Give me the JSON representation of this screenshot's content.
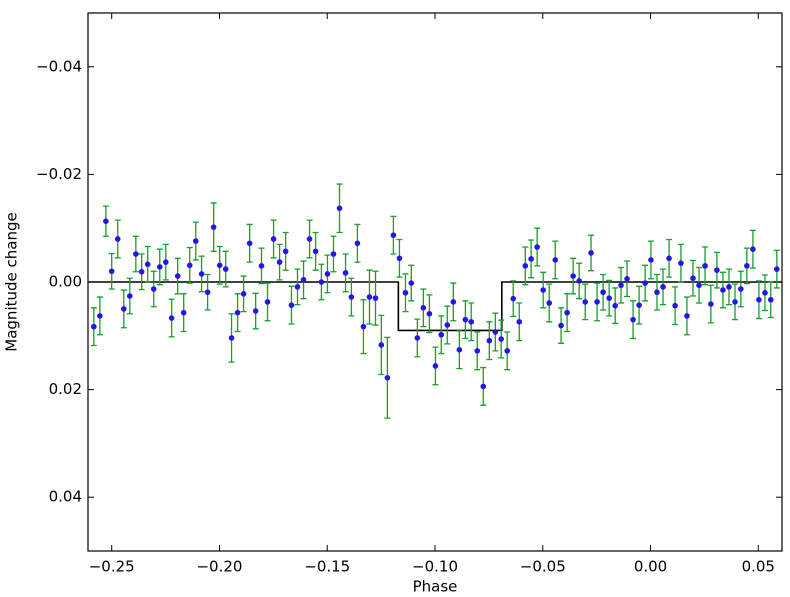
{
  "chart_data": {
    "type": "errorbar",
    "xlabel": "Phase",
    "ylabel": "Magnitude change",
    "xlim": [
      -0.261,
      0.061
    ],
    "ylim": [
      -0.05,
      0.05
    ],
    "y_inverted": true,
    "xticks": [
      {
        "value": -0.25,
        "label": "−0.25"
      },
      {
        "value": -0.2,
        "label": "−0.20"
      },
      {
        "value": -0.15,
        "label": "−0.15"
      },
      {
        "value": -0.1,
        "label": "−0.10"
      },
      {
        "value": -0.05,
        "label": "−0.05"
      },
      {
        "value": 0,
        "label": "0.00"
      },
      0.05
    ],
    "yticks": [
      {
        "value": -0.04,
        "label": "−0.04"
      },
      {
        "value": -0.02,
        "label": "−0.02"
      },
      {
        "value": 0,
        "label": "0.00"
      },
      0.02,
      0.04
    ],
    "points": {
      "color": "#2a12e8",
      "error_color": "#14a02c",
      "x": [
        -0.2583,
        -0.2555,
        -0.2527,
        -0.25,
        -0.2472,
        -0.2444,
        -0.2416,
        -0.2388,
        -0.2361,
        -0.2333,
        -0.2305,
        -0.2277,
        -0.2249,
        -0.2222,
        -0.2194,
        -0.2166,
        -0.2138,
        -0.211,
        -0.2083,
        -0.2055,
        -0.2027,
        -0.1999,
        -0.1971,
        -0.1944,
        -0.1916,
        -0.1888,
        -0.186,
        -0.1832,
        -0.1805,
        -0.1777,
        -0.1749,
        -0.1721,
        -0.1693,
        -0.1666,
        -0.1638,
        -0.161,
        -0.1582,
        -0.1554,
        -0.1527,
        -0.1499,
        -0.1471,
        -0.1443,
        -0.1415,
        -0.1388,
        -0.136,
        -0.1332,
        -0.1304,
        -0.1276,
        -0.1249,
        -0.1221,
        -0.1193,
        -0.1165,
        -0.1137,
        -0.111,
        -0.1082,
        -0.1054,
        -0.1026,
        -0.0998,
        -0.0971,
        -0.0943,
        -0.0915,
        -0.0887,
        -0.0859,
        -0.0832,
        -0.0804,
        -0.0776,
        -0.0748,
        -0.072,
        -0.0693,
        -0.0665,
        -0.0637,
        -0.0609,
        -0.0581,
        -0.0554,
        -0.0526,
        -0.0498,
        -0.047,
        -0.0442,
        -0.0415,
        -0.0387,
        -0.0359,
        -0.0331,
        -0.0303,
        -0.0276,
        -0.0248,
        -0.022,
        -0.0192,
        -0.0164,
        -0.0137,
        -0.0109,
        -0.0081,
        -0.0053,
        -0.0025,
        0.0002,
        0.003,
        0.0058,
        0.0086,
        0.0114,
        0.0141,
        0.0169,
        0.0197,
        0.0225,
        0.0253,
        0.028,
        0.0308,
        0.0336,
        0.0364,
        0.0392,
        0.0419,
        0.0447,
        0.0475,
        0.0503,
        0.0531,
        0.0558,
        0.0586
      ],
      "values": [
        0.0083,
        0.0063,
        -0.0113,
        -0.002,
        -0.008,
        0.005,
        0.0026,
        -0.0052,
        -0.0019,
        -0.0033,
        0.0013,
        -0.0028,
        -0.0037,
        0.0067,
        -0.0011,
        0.0057,
        -0.0031,
        -0.0076,
        -0.0015,
        0.0019,
        -0.0102,
        -0.0031,
        -0.0024,
        0.0104,
        0.0057,
        0.0022,
        -0.0072,
        0.0054,
        -0.003,
        0.0037,
        -0.008,
        -0.0037,
        -0.0057,
        0.0043,
        0.0009,
        -0.0004,
        -0.008,
        -0.0057,
        0.0,
        -0.0015,
        -0.0052,
        -0.0137,
        -0.0017,
        0.0028,
        -0.0072,
        0.0083,
        0.0028,
        0.003,
        0.0117,
        0.0178,
        -0.0087,
        -0.0044,
        0.002,
        0.0002,
        0.0104,
        0.0048,
        0.0059,
        0.0156,
        0.0098,
        0.008,
        0.0037,
        0.0126,
        0.007,
        0.0074,
        0.0128,
        0.0194,
        0.0109,
        0.0093,
        0.0106,
        0.0128,
        0.0031,
        0.0074,
        -0.003,
        -0.0043,
        -0.0065,
        0.0015,
        0.0039,
        -0.0041,
        0.0081,
        0.0057,
        -0.0011,
        -0.0002,
        0.0037,
        -0.0054,
        0.0037,
        0.0019,
        0.003,
        0.0044,
        0.0006,
        -0.0006,
        0.007,
        0.0043,
        0.0002,
        -0.0041,
        0.0019,
        0.0009,
        -0.0044,
        0.0044,
        -0.0035,
        0.0063,
        -0.0007,
        0.0006,
        -0.003,
        0.0041,
        -0.0022,
        0.0015,
        0.0009,
        0.0037,
        0.0013,
        -0.003,
        -0.0061,
        0.0033,
        0.002,
        0.0033,
        -0.0024
      ],
      "errors": [
        0.0035,
        0.0035,
        0.0028,
        0.0033,
        0.0035,
        0.0035,
        0.0033,
        0.0033,
        0.0033,
        0.0033,
        0.0033,
        0.0033,
        0.0033,
        0.0035,
        0.0033,
        0.0035,
        0.0033,
        0.0035,
        0.0033,
        0.0033,
        0.0045,
        0.0035,
        0.0033,
        0.0045,
        0.0035,
        0.0033,
        0.0035,
        0.0033,
        0.0033,
        0.0035,
        0.0035,
        0.0033,
        0.0035,
        0.0035,
        0.0033,
        0.0035,
        0.0035,
        0.0035,
        0.0033,
        0.0035,
        0.0033,
        0.0045,
        0.0035,
        0.0035,
        0.0035,
        0.005,
        0.005,
        0.005,
        0.0055,
        0.0075,
        0.0035,
        0.0035,
        0.0035,
        0.0033,
        0.0035,
        0.0035,
        0.0035,
        0.0035,
        0.0035,
        0.0035,
        0.0035,
        0.0035,
        0.0035,
        0.0035,
        0.0035,
        0.0035,
        0.0035,
        0.0035,
        0.0035,
        0.0035,
        0.0033,
        0.0035,
        0.0035,
        0.0035,
        0.0035,
        0.0033,
        0.0035,
        0.0035,
        0.0033,
        0.0035,
        0.0033,
        0.0033,
        0.0033,
        0.0033,
        0.0035,
        0.0033,
        0.0033,
        0.0033,
        0.0033,
        0.0033,
        0.0035,
        0.0035,
        0.0033,
        0.0035,
        0.0033,
        0.0033,
        0.0035,
        0.0035,
        0.0035,
        0.0035,
        0.0033,
        0.0033,
        0.0035,
        0.0035,
        0.0033,
        0.0033,
        0.0033,
        0.0033,
        0.0033,
        0.0033,
        0.0035,
        0.0035,
        0.0033,
        0.0033,
        0.0035
      ]
    },
    "model": {
      "color": "#000000",
      "x": [
        -0.261,
        -0.117,
        -0.117,
        -0.069,
        -0.069,
        0.061
      ],
      "values": [
        0,
        0,
        0.009,
        0.009,
        0,
        0
      ]
    }
  }
}
